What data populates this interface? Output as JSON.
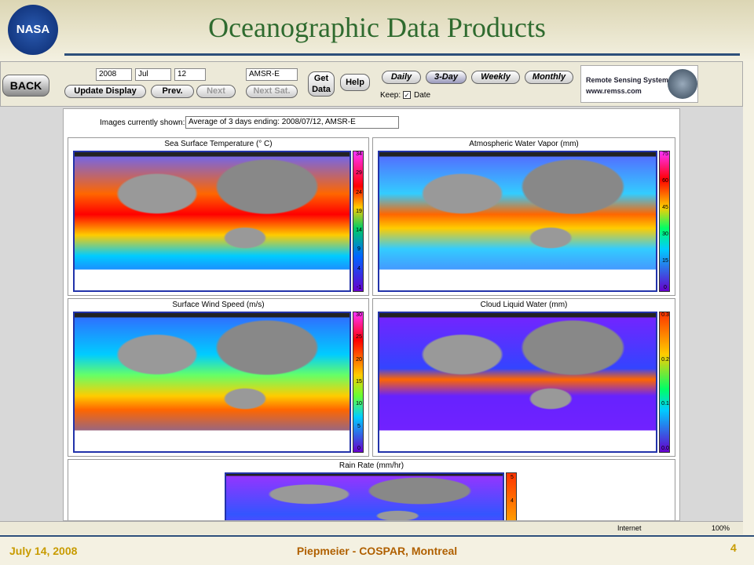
{
  "slide": {
    "logo": "NASA",
    "title": "Oceanographic Data Products",
    "footer_date": "July 14, 2008",
    "footer_center": "Piepmeier - COSPAR, Montreal",
    "page_number": "4"
  },
  "toolbar": {
    "back": "BACK",
    "year": "2008",
    "month": "Jul",
    "day": "12",
    "satellite": "AMSR-E",
    "update": "Update Display",
    "prev": "Prev.",
    "next": "Next",
    "next_sat": "Next Sat.",
    "get_data": "Get Data",
    "help": "Help",
    "periods": [
      "Daily",
      "3-Day",
      "Weekly",
      "Monthly"
    ],
    "keep": "Keep:",
    "keep_option": "Date",
    "brand": "Remote Sensing Systems",
    "url": "www.remss.com"
  },
  "content": {
    "shown_label": "Images currently shown:",
    "shown_value": "Average of 3 days ending: 2008/07/12, AMSR-E",
    "panels": [
      {
        "title": "Sea Surface Temperature (° C)",
        "scale": [
          "34",
          "29",
          "24",
          "19",
          "14",
          "9",
          "4",
          "-1"
        ]
      },
      {
        "title": "Atmospheric Water Vapor (mm)",
        "scale": [
          "75",
          "60",
          "45",
          "30",
          "15",
          "0"
        ]
      },
      {
        "title": "Surface Wind Speed (m/s)",
        "scale": [
          "30",
          "25",
          "20",
          "15",
          "10",
          "5",
          "0"
        ]
      },
      {
        "title": "Cloud Liquid Water (mm)",
        "scale": [
          "0.3",
          "0.2",
          "0.1",
          "0.0"
        ]
      },
      {
        "title": "Rain Rate (mm/hr)",
        "scale": [
          "5",
          "4"
        ]
      }
    ]
  },
  "status": {
    "zone": "Internet",
    "zoom": "100%"
  }
}
